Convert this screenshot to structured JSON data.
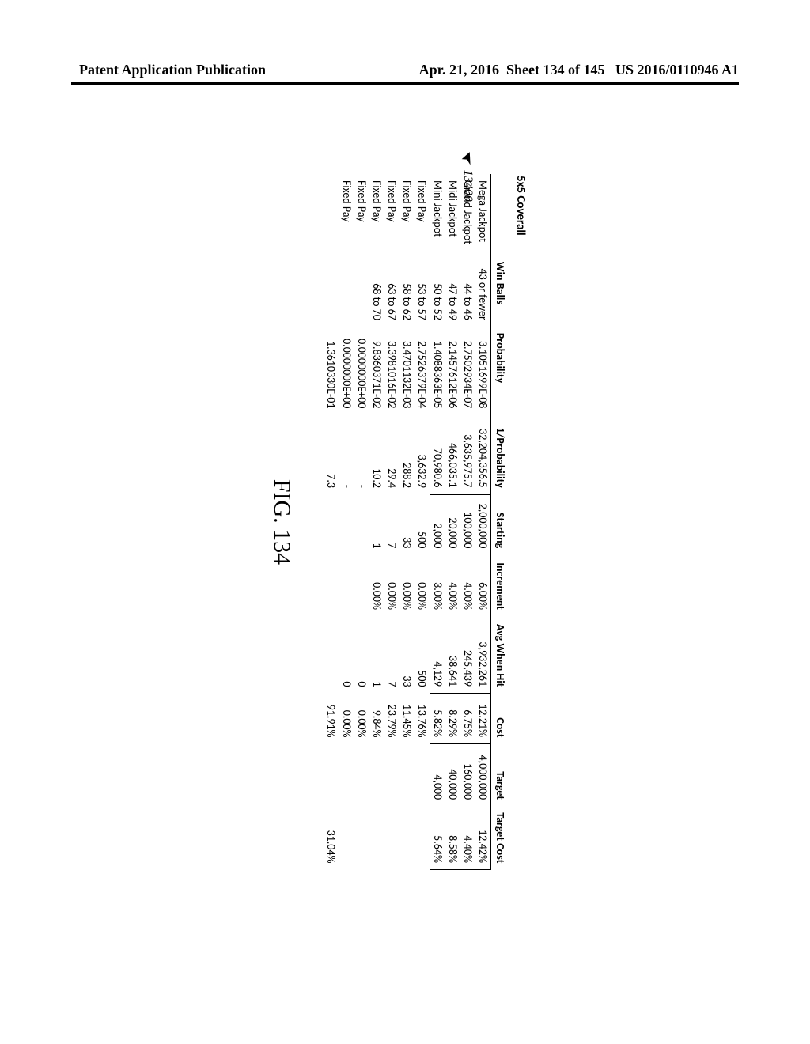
{
  "header": {
    "left": "Patent Application Publication",
    "date": "Apr. 21, 2016",
    "sheet": "Sheet 134 of 145",
    "pubnum": "US 2016/0110946 A1"
  },
  "ref_num": "13400",
  "section_title": "5x5 Coverall",
  "figure_label": "FIG. 134",
  "columns": {
    "name": "",
    "win_balls": "Win Balls",
    "probability": "Probability",
    "inv_probability": "1/Probability",
    "starting": "Starting",
    "increment": "Increment",
    "avg_when_hit": "Avg When Hit",
    "cost": "Cost",
    "target": "Target",
    "target_cost": "Target Cost"
  },
  "rows": [
    {
      "name": "Mega Jackpot",
      "win_balls": "43 or fewer",
      "probability": "3.1051699E-08",
      "inv_probability": "32,204,356.5",
      "starting": "2,000,000",
      "increment": "6.00%",
      "avg_when_hit": "3,932,261",
      "cost": "12.21%",
      "target": "4,000,000",
      "target_cost": "12.42%"
    },
    {
      "name": "Grand Jackpot",
      "win_balls": "44 to 46",
      "probability": "2.7502934E-07",
      "inv_probability": "3,635,975.7",
      "starting": "100,000",
      "increment": "4.00%",
      "avg_when_hit": "245,439",
      "cost": "6.75%",
      "target": "160,000",
      "target_cost": "4.40%"
    },
    {
      "name": "Midi Jackpot",
      "win_balls": "47 to 49",
      "probability": "2.1457612E-06",
      "inv_probability": "466,035.1",
      "starting": "20,000",
      "increment": "4.00%",
      "avg_when_hit": "38,641",
      "cost": "8.29%",
      "target": "40,000",
      "target_cost": "8.58%"
    },
    {
      "name": "Mini Jackpot",
      "win_balls": "50 to 52",
      "probability": "1.4088363E-05",
      "inv_probability": "70,980.6",
      "starting": "2,000",
      "increment": "3.00%",
      "avg_when_hit": "4,129",
      "cost": "5.82%",
      "target": "4,000",
      "target_cost": "5.64%"
    },
    {
      "name": "Fixed Pay",
      "win_balls": "53 to 57",
      "probability": "2.7526379E-04",
      "inv_probability": "3,632.9",
      "starting": "500",
      "increment": "0.00%",
      "avg_when_hit": "500",
      "cost": "13.76%",
      "target": "",
      "target_cost": ""
    },
    {
      "name": "Fixed Pay",
      "win_balls": "58 to 62",
      "probability": "3.4701132E-03",
      "inv_probability": "288.2",
      "starting": "33",
      "increment": "0.00%",
      "avg_when_hit": "33",
      "cost": "11.45%",
      "target": "",
      "target_cost": ""
    },
    {
      "name": "Fixed Pay",
      "win_balls": "63 to 67",
      "probability": "3.3981016E-02",
      "inv_probability": "29.4",
      "starting": "7",
      "increment": "0.00%",
      "avg_when_hit": "7",
      "cost": "23.79%",
      "target": "",
      "target_cost": ""
    },
    {
      "name": "Fixed Pay",
      "win_balls": "68 to 70",
      "probability": "9.8360371E-02",
      "inv_probability": "10.2",
      "starting": "1",
      "increment": "0.00%",
      "avg_when_hit": "1",
      "cost": "9.84%",
      "target": "",
      "target_cost": ""
    },
    {
      "name": "Fixed Pay",
      "win_balls": "",
      "probability": "0.0000000E+00",
      "inv_probability": "-",
      "starting": "",
      "increment": "",
      "avg_when_hit": "0",
      "cost": "0.00%",
      "target": "",
      "target_cost": ""
    },
    {
      "name": "Fixed Pay",
      "win_balls": "",
      "probability": "0.0000000E+00",
      "inv_probability": "-",
      "starting": "",
      "increment": "",
      "avg_when_hit": "0",
      "cost": "0.00%",
      "target": "",
      "target_cost": ""
    }
  ],
  "totals": {
    "probability": "1.3610330E-01",
    "inv_probability": "7.3",
    "cost": "91.91%",
    "target_cost": "31.04%"
  },
  "style": {
    "font_body": "Calibri",
    "font_header": "Times New Roman",
    "border_color": "#000000",
    "background": "#ffffff",
    "fontsize_table": 14,
    "fontsize_header": 18,
    "fontsize_fig": 30
  }
}
